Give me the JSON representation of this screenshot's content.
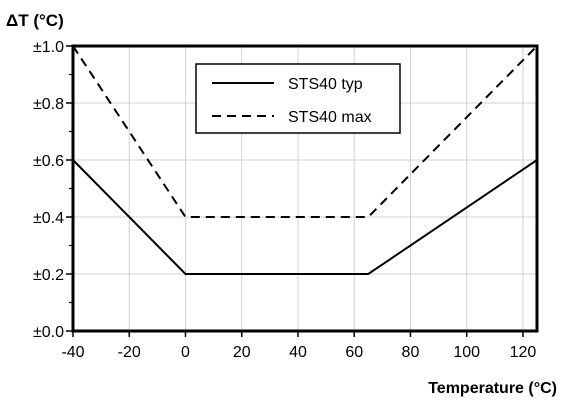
{
  "chart_data": {
    "type": "line",
    "title": "",
    "ylabel": "ΔT (°C)",
    "xlabel": "Temperature (°C)",
    "xlim": [
      -40,
      125
    ],
    "ylim": [
      0,
      1.0
    ],
    "xticks": [
      -40,
      -20,
      0,
      20,
      40,
      60,
      80,
      100,
      120
    ],
    "yticks": [
      0.0,
      0.2,
      0.4,
      0.6,
      0.8,
      1.0
    ],
    "xtick_labels": [
      "-40",
      "-20",
      "0",
      "20",
      "40",
      "60",
      "80",
      "100",
      "120"
    ],
    "ytick_labels": [
      "±0.0",
      "±0.2",
      "±0.4",
      "±0.6",
      "±0.8",
      "±1.0"
    ],
    "grid": true,
    "legend_position": "top-center",
    "series": [
      {
        "name": "STS40 typ",
        "style": "solid",
        "color": "#000000",
        "x": [
          -40,
          0,
          65,
          125
        ],
        "y": [
          0.6,
          0.2,
          0.2,
          0.6
        ]
      },
      {
        "name": "STS40 max",
        "style": "dashed",
        "color": "#000000",
        "x": [
          -40,
          0,
          65,
          125
        ],
        "y": [
          1.0,
          0.4,
          0.4,
          1.0
        ]
      }
    ]
  }
}
